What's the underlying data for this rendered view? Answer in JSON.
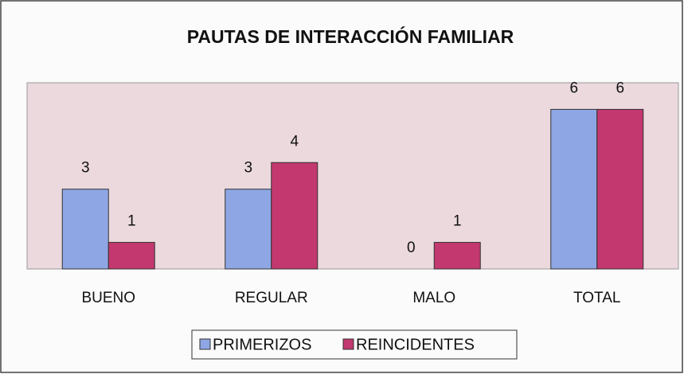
{
  "chart_data": {
    "type": "bar",
    "title": "PAUTAS DE INTERACCIÓN FAMILIAR",
    "categories": [
      "BUENO",
      "REGULAR",
      "MALO",
      "TOTAL"
    ],
    "series": [
      {
        "name": "PRIMERIZOS",
        "color": "#8ea6e3",
        "values": [
          3,
          3,
          0,
          6
        ]
      },
      {
        "name": "REINCIDENTES",
        "color": "#c2386f",
        "values": [
          1,
          4,
          1,
          6
        ]
      }
    ],
    "ylim": [
      0,
      7
    ],
    "grid": false
  }
}
